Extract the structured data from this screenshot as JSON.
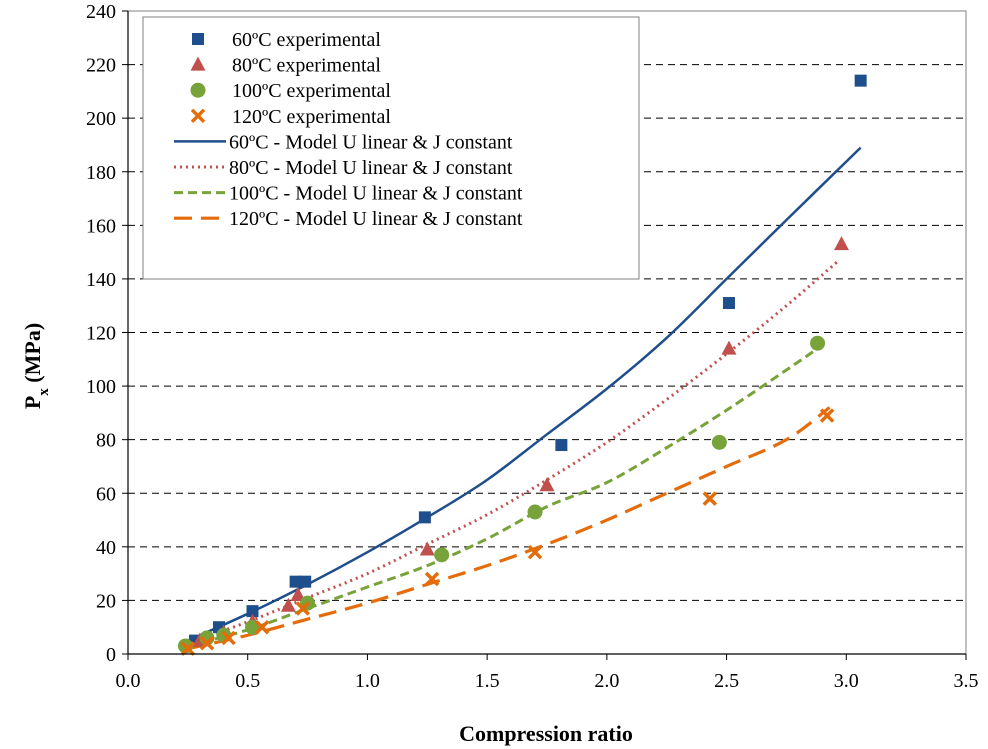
{
  "chart_data": {
    "type": "scatter",
    "title": "",
    "xlabel": "Compression ratio",
    "ylabel": "P",
    "ylabel_sub": "x",
    "ylabel_unit": " (MPa)",
    "xlim": [
      0.0,
      3.5
    ],
    "ylim": [
      0,
      240
    ],
    "xticks": [
      0.0,
      0.5,
      1.0,
      1.5,
      2.0,
      2.5,
      3.0,
      3.5
    ],
    "xtick_labels": [
      "0.0",
      "0.5",
      "1.0",
      "1.5",
      "2.0",
      "2.5",
      "3.0",
      "3.5"
    ],
    "yticks": [
      0,
      20,
      40,
      60,
      80,
      100,
      120,
      140,
      160,
      180,
      200,
      220,
      240
    ],
    "ytick_labels": [
      "0",
      "20",
      "40",
      "60",
      "80",
      "100",
      "120",
      "140",
      "160",
      "180",
      "200",
      "220",
      "240"
    ],
    "grid": "horizontal-dashed",
    "legend_position": "top-left",
    "series": [
      {
        "name": "60ºC experimental",
        "kind": "marker",
        "marker": "square",
        "color": "#1f4e8c",
        "points": [
          [
            0.28,
            5
          ],
          [
            0.38,
            10
          ],
          [
            0.52,
            16
          ],
          [
            0.7,
            27
          ],
          [
            0.74,
            27
          ],
          [
            1.24,
            51
          ],
          [
            1.81,
            78
          ],
          [
            2.51,
            131
          ],
          [
            3.06,
            214
          ]
        ]
      },
      {
        "name": "80ºC experimental",
        "kind": "marker",
        "marker": "triangle",
        "color": "#c0504d",
        "points": [
          [
            0.3,
            5
          ],
          [
            0.4,
            8
          ],
          [
            0.52,
            12
          ],
          [
            0.67,
            18
          ],
          [
            0.71,
            22
          ],
          [
            1.25,
            39
          ],
          [
            1.75,
            63
          ],
          [
            2.51,
            114
          ],
          [
            2.98,
            153
          ]
        ]
      },
      {
        "name": "100ºC experimental",
        "kind": "marker",
        "marker": "circle",
        "color": "#77a33a",
        "points": [
          [
            0.24,
            3
          ],
          [
            0.33,
            6
          ],
          [
            0.4,
            7
          ],
          [
            0.52,
            10
          ],
          [
            0.75,
            19
          ],
          [
            1.31,
            37
          ],
          [
            1.7,
            53
          ],
          [
            2.47,
            79
          ],
          [
            2.88,
            116
          ]
        ]
      },
      {
        "name": "120ºC experimental",
        "kind": "marker",
        "marker": "x",
        "color": "#e46c0a",
        "points": [
          [
            0.25,
            2
          ],
          [
            0.33,
            4
          ],
          [
            0.42,
            6
          ],
          [
            0.56,
            10
          ],
          [
            0.73,
            17
          ],
          [
            1.27,
            28
          ],
          [
            1.7,
            38
          ],
          [
            2.43,
            58
          ],
          [
            2.92,
            89
          ]
        ]
      },
      {
        "name": "60ºC - Model U linear & J constant",
        "kind": "line",
        "dash": "solid",
        "color": "#1f4e8c",
        "points": [
          [
            0.25,
            5
          ],
          [
            0.5,
            15
          ],
          [
            0.75,
            26
          ],
          [
            1.0,
            38
          ],
          [
            1.25,
            51
          ],
          [
            1.5,
            65
          ],
          [
            1.75,
            82
          ],
          [
            2.0,
            99
          ],
          [
            2.25,
            118
          ],
          [
            2.5,
            140
          ],
          [
            2.75,
            162
          ],
          [
            3.06,
            189
          ]
        ]
      },
      {
        "name": "80ºC - Model U linear & J constant",
        "kind": "line",
        "dash": "dotted",
        "color": "#c0504d",
        "points": [
          [
            0.25,
            4
          ],
          [
            0.5,
            12
          ],
          [
            0.75,
            21
          ],
          [
            1.0,
            30
          ],
          [
            1.25,
            41
          ],
          [
            1.5,
            52
          ],
          [
            1.75,
            65
          ],
          [
            2.0,
            79
          ],
          [
            2.25,
            95
          ],
          [
            2.5,
            112
          ],
          [
            2.75,
            130
          ],
          [
            2.97,
            147
          ]
        ]
      },
      {
        "name": "100ºC - Model U linear & J constant",
        "kind": "line",
        "dash": "dashed",
        "color": "#77a33a",
        "points": [
          [
            0.25,
            3
          ],
          [
            0.5,
            9
          ],
          [
            0.75,
            17
          ],
          [
            1.0,
            25
          ],
          [
            1.25,
            33
          ],
          [
            1.5,
            43
          ],
          [
            1.75,
            55
          ],
          [
            2.0,
            64
          ],
          [
            2.25,
            77
          ],
          [
            2.5,
            91
          ],
          [
            2.75,
            106
          ],
          [
            2.88,
            114
          ]
        ]
      },
      {
        "name": "120ºC - Model U linear & J constant",
        "kind": "line",
        "dash": "longdash",
        "color": "#e46c0a",
        "points": [
          [
            0.25,
            2
          ],
          [
            0.5,
            7
          ],
          [
            0.75,
            13
          ],
          [
            1.0,
            19
          ],
          [
            1.25,
            26
          ],
          [
            1.5,
            33
          ],
          [
            1.75,
            41
          ],
          [
            2.0,
            50
          ],
          [
            2.25,
            60
          ],
          [
            2.5,
            70
          ],
          [
            2.75,
            80
          ],
          [
            2.93,
            92
          ]
        ]
      }
    ]
  }
}
